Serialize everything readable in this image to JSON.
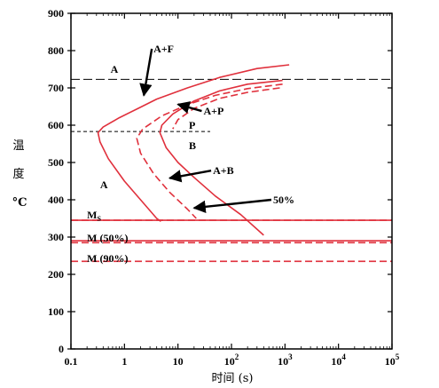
{
  "chart_data": {
    "type": "line",
    "title": "",
    "xlabel": "时间 (s)",
    "ylabel": [
      "温",
      "度",
      "°C"
    ],
    "xscale": "log",
    "xlim": [
      0.1,
      100000
    ],
    "ylim": [
      0,
      900
    ],
    "x_ticks": [
      {
        "value": 0.1,
        "base": "0.1",
        "exp": ""
      },
      {
        "value": 1,
        "base": "1",
        "exp": ""
      },
      {
        "value": 10,
        "base": "10",
        "exp": ""
      },
      {
        "value": 100,
        "base": "10",
        "exp": "2"
      },
      {
        "value": 1000,
        "base": "10",
        "exp": "3"
      },
      {
        "value": 10000,
        "base": "10",
        "exp": "4"
      },
      {
        "value": 100000,
        "base": "10",
        "exp": "5"
      }
    ],
    "y_ticks": [
      0,
      100,
      200,
      300,
      400,
      500,
      600,
      700,
      800,
      900
    ],
    "colors": {
      "curve": "#e0303c",
      "ref": "#000000",
      "axis": "#000000"
    },
    "series": [
      {
        "style": "solid",
        "points": [
          [
            1200,
            762
          ],
          [
            300,
            752
          ],
          [
            60,
            728
          ],
          [
            15,
            700
          ],
          [
            4,
            670
          ],
          [
            1.8,
            645
          ],
          [
            0.8,
            620
          ],
          [
            0.4,
            595
          ],
          [
            0.32,
            580
          ],
          [
            0.35,
            555
          ],
          [
            0.5,
            510
          ],
          [
            1,
            450
          ],
          [
            2,
            400
          ],
          [
            4,
            350
          ],
          [
            4.8,
            342
          ]
        ]
      },
      {
        "style": "dashed",
        "points": [
          [
            900,
            710
          ],
          [
            200,
            698
          ],
          [
            50,
            680
          ],
          [
            15,
            655
          ],
          [
            5,
            625
          ],
          [
            2.2,
            590
          ],
          [
            1.7,
            565
          ],
          [
            2,
            525
          ],
          [
            3.5,
            470
          ],
          [
            7,
            420
          ],
          [
            15,
            375
          ],
          [
            22,
            350
          ]
        ]
      },
      {
        "style": "solid",
        "points": [
          [
            900,
            720
          ],
          [
            200,
            710
          ],
          [
            60,
            692
          ],
          [
            20,
            665
          ],
          [
            8,
            630
          ],
          [
            5,
            600
          ],
          [
            4.6,
            580
          ],
          [
            6,
            540
          ],
          [
            10,
            500
          ],
          [
            20,
            460
          ],
          [
            50,
            410
          ],
          [
            150,
            360
          ],
          [
            400,
            305
          ]
        ]
      },
      {
        "style": "dashed",
        "points": [
          [
            800,
            700
          ],
          [
            200,
            688
          ],
          [
            60,
            672
          ],
          [
            20,
            645
          ],
          [
            10,
            615
          ],
          [
            8,
            590
          ]
        ]
      },
      {
        "style": "solid",
        "points": [
          [
            0.1,
            345
          ],
          [
            100000,
            345
          ]
        ]
      },
      {
        "style": "dashed",
        "points": [
          [
            0.1,
            345
          ],
          [
            100000,
            345
          ]
        ]
      },
      {
        "style": "solid",
        "points": [
          [
            0.1,
            290
          ],
          [
            100000,
            290
          ]
        ]
      },
      {
        "style": "dashed",
        "points": [
          [
            0.1,
            285
          ],
          [
            100000,
            285
          ]
        ]
      },
      {
        "style": "dashed",
        "points": [
          [
            0.1,
            235
          ],
          [
            100000,
            235
          ]
        ]
      }
    ],
    "reference_lines": [
      {
        "y": 723,
        "style": "long-dash",
        "x_from": 0.1,
        "x_to": 100000
      },
      {
        "y": 583,
        "style": "short-dash",
        "x_from": 0.1,
        "x_to": 40
      }
    ],
    "annotations": [
      {
        "text": "A",
        "x": 0.55,
        "y": 750
      },
      {
        "text": "A+F",
        "x": 3.5,
        "y": 805,
        "arrow_to": [
          2.3,
          680
        ]
      },
      {
        "text": "A+P",
        "x": 30,
        "y": 638,
        "arrow_to": [
          10,
          656
        ]
      },
      {
        "text": "P",
        "x": 16,
        "y": 600
      },
      {
        "text": "B",
        "x": 16,
        "y": 545
      },
      {
        "text": "A+B",
        "x": 45,
        "y": 478,
        "arrow_to": [
          7,
          458
        ]
      },
      {
        "text": "A",
        "x": 0.35,
        "y": 440
      },
      {
        "text": "50%",
        "x": 600,
        "y": 400,
        "arrow_to": [
          20,
          378
        ]
      },
      {
        "text": "M",
        "sub": "S",
        "x": 0.2,
        "y": 360
      },
      {
        "text": "M (50%)",
        "x": 0.2,
        "y": 298
      },
      {
        "text": "M (90%)",
        "x": 0.2,
        "y": 243
      }
    ]
  }
}
